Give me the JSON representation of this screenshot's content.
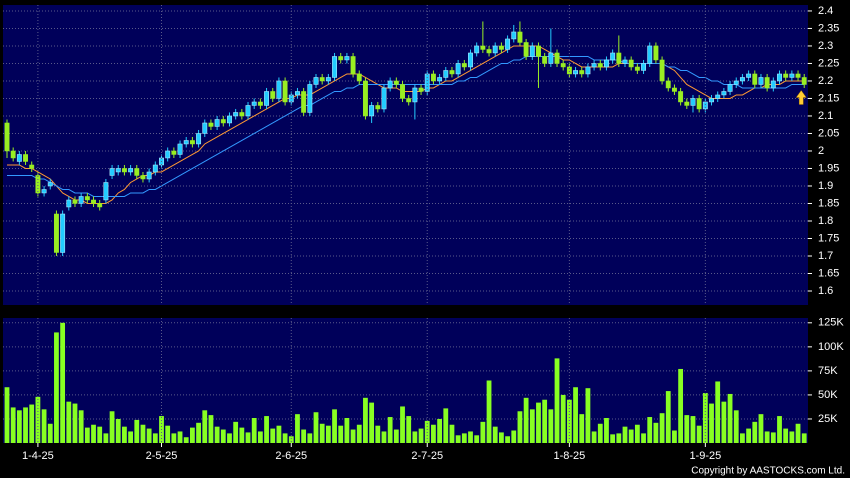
{
  "chart_data": [
    {
      "type": "candlestick",
      "up_color": "#22ccff",
      "down_color": "#99ee22",
      "ylim": [
        1.56,
        2.417
      ],
      "yticks": [
        2.4,
        2.35,
        2.3,
        2.25,
        2.2,
        2.15,
        2.1,
        2.05,
        2,
        1.95,
        1.9,
        1.85,
        1.8,
        1.75,
        1.7,
        1.65,
        1.6
      ],
      "grid": true,
      "open": [
        2.08,
        2.0,
        1.97,
        1.99,
        1.96,
        1.93,
        1.88,
        1.9,
        1.82,
        1.71,
        1.84,
        1.86,
        1.85,
        1.87,
        1.86,
        1.85,
        1.86,
        1.93,
        1.94,
        1.95,
        1.94,
        1.95,
        1.93,
        1.92,
        1.94,
        1.96,
        1.98,
        2.0,
        1.99,
        2.02,
        2.03,
        2.02,
        2.05,
        2.08,
        2.07,
        2.09,
        2.08,
        2.1,
        2.11,
        2.1,
        2.13,
        2.14,
        2.13,
        2.17,
        2.15,
        2.2,
        2.14,
        2.16,
        2.17,
        2.11,
        2.19,
        2.21,
        2.2,
        2.21,
        2.27,
        2.26,
        2.27,
        2.22,
        2.2,
        2.1,
        2.13,
        2.12,
        2.18,
        2.2,
        2.19,
        2.15,
        2.14,
        2.18,
        2.17,
        2.22,
        2.2,
        2.21,
        2.23,
        2.22,
        2.25,
        2.24,
        2.28,
        2.3,
        2.29,
        2.28,
        2.3,
        2.29,
        2.32,
        2.34,
        2.31,
        2.27,
        2.3,
        2.27,
        2.25,
        2.28,
        2.25,
        2.24,
        2.22,
        2.23,
        2.22,
        2.24,
        2.25,
        2.24,
        2.26,
        2.28,
        2.25,
        2.26,
        2.24,
        2.23,
        2.25,
        2.3,
        2.26,
        2.2,
        2.18,
        2.17,
        2.14,
        2.13,
        2.15,
        2.12,
        2.14,
        2.15,
        2.16,
        2.17,
        2.19,
        2.2,
        2.21,
        2.22,
        2.19,
        2.21,
        2.18,
        2.2,
        2.22,
        2.21,
        2.22,
        2.21
      ],
      "high": [
        2.09,
        2.01,
        2.0,
        2.0,
        1.97,
        1.94,
        1.9,
        1.92,
        1.83,
        1.83,
        1.87,
        1.87,
        1.88,
        1.88,
        1.87,
        1.86,
        1.92,
        1.96,
        1.96,
        1.96,
        1.96,
        1.96,
        1.94,
        1.95,
        1.97,
        1.99,
        2.01,
        2.01,
        2.03,
        2.04,
        2.04,
        2.06,
        2.09,
        2.09,
        2.1,
        2.1,
        2.11,
        2.12,
        2.12,
        2.14,
        2.15,
        2.15,
        2.18,
        2.18,
        2.21,
        2.21,
        2.17,
        2.18,
        2.18,
        2.2,
        2.22,
        2.22,
        2.22,
        2.28,
        2.28,
        2.28,
        2.28,
        2.23,
        2.21,
        2.14,
        2.14,
        2.19,
        2.21,
        2.21,
        2.2,
        2.16,
        2.19,
        2.19,
        2.23,
        2.23,
        2.22,
        2.24,
        2.24,
        2.26,
        2.26,
        2.29,
        2.31,
        2.37,
        2.3,
        2.31,
        2.31,
        2.33,
        2.36,
        2.37,
        2.32,
        2.31,
        2.31,
        2.28,
        2.35,
        2.29,
        2.26,
        2.25,
        2.24,
        2.24,
        2.25,
        2.26,
        2.26,
        2.27,
        2.29,
        2.33,
        2.27,
        2.27,
        2.25,
        2.26,
        2.31,
        2.31,
        2.27,
        2.21,
        2.19,
        2.18,
        2.15,
        2.16,
        2.16,
        2.15,
        2.16,
        2.17,
        2.18,
        2.2,
        2.21,
        2.22,
        2.23,
        2.23,
        2.22,
        2.22,
        2.21,
        2.23,
        2.23,
        2.23,
        2.23,
        2.22
      ],
      "low": [
        1.98,
        1.97,
        1.96,
        1.96,
        1.94,
        1.87,
        1.87,
        1.89,
        1.7,
        1.7,
        1.83,
        1.84,
        1.84,
        1.85,
        1.84,
        1.83,
        1.85,
        1.92,
        1.93,
        1.93,
        1.93,
        1.92,
        1.91,
        1.91,
        1.93,
        1.95,
        1.97,
        1.98,
        1.98,
        2.01,
        2.01,
        2.01,
        2.04,
        2.06,
        2.06,
        2.07,
        2.07,
        2.09,
        2.09,
        2.09,
        2.12,
        2.12,
        2.12,
        2.14,
        2.14,
        2.13,
        2.13,
        2.15,
        2.1,
        2.1,
        2.18,
        2.19,
        2.19,
        2.2,
        2.25,
        2.25,
        2.21,
        2.19,
        2.09,
        2.08,
        2.11,
        2.11,
        2.17,
        2.18,
        2.14,
        2.13,
        2.09,
        2.16,
        2.16,
        2.19,
        2.19,
        2.2,
        2.21,
        2.21,
        2.23,
        2.23,
        2.27,
        2.28,
        2.27,
        2.27,
        2.28,
        2.28,
        2.31,
        2.3,
        2.26,
        2.26,
        2.18,
        2.24,
        2.24,
        2.24,
        2.23,
        2.21,
        2.21,
        2.21,
        2.21,
        2.23,
        2.23,
        2.23,
        2.25,
        2.24,
        2.24,
        2.23,
        2.22,
        2.22,
        2.24,
        2.25,
        2.19,
        2.17,
        2.16,
        2.13,
        2.12,
        2.11,
        2.11,
        2.11,
        2.13,
        2.14,
        2.15,
        2.16,
        2.18,
        2.19,
        2.2,
        2.18,
        2.18,
        2.17,
        2.17,
        2.19,
        2.2,
        2.2,
        2.2,
        2.18
      ],
      "close": [
        2.0,
        1.98,
        1.99,
        1.97,
        1.95,
        1.88,
        1.89,
        1.91,
        1.71,
        1.82,
        1.86,
        1.85,
        1.87,
        1.86,
        1.85,
        1.84,
        1.91,
        1.95,
        1.95,
        1.94,
        1.95,
        1.93,
        1.92,
        1.94,
        1.96,
        1.98,
        2.0,
        1.99,
        2.02,
        2.03,
        2.02,
        2.05,
        2.08,
        2.07,
        2.09,
        2.08,
        2.1,
        2.11,
        2.1,
        2.13,
        2.14,
        2.13,
        2.17,
        2.15,
        2.2,
        2.14,
        2.16,
        2.17,
        2.11,
        2.19,
        2.21,
        2.2,
        2.21,
        2.27,
        2.26,
        2.27,
        2.22,
        2.2,
        2.1,
        2.13,
        2.12,
        2.18,
        2.2,
        2.19,
        2.15,
        2.14,
        2.18,
        2.17,
        2.22,
        2.2,
        2.21,
        2.23,
        2.22,
        2.25,
        2.24,
        2.28,
        2.3,
        2.29,
        2.28,
        2.3,
        2.29,
        2.32,
        2.34,
        2.31,
        2.27,
        2.3,
        2.27,
        2.25,
        2.28,
        2.25,
        2.24,
        2.22,
        2.23,
        2.22,
        2.24,
        2.25,
        2.24,
        2.26,
        2.28,
        2.25,
        2.26,
        2.24,
        2.23,
        2.25,
        2.3,
        2.26,
        2.2,
        2.18,
        2.17,
        2.14,
        2.13,
        2.15,
        2.12,
        2.14,
        2.15,
        2.16,
        2.17,
        2.19,
        2.2,
        2.21,
        2.22,
        2.19,
        2.21,
        2.18,
        2.2,
        2.22,
        2.21,
        2.22,
        2.21,
        2.19
      ],
      "series": [
        {
          "color": "#ff9933",
          "values": [
            1.96,
            1.96,
            1.96,
            1.95,
            1.95,
            1.94,
            1.93,
            1.92,
            1.9,
            1.88,
            1.87,
            1.86,
            1.86,
            1.85,
            1.85,
            1.85,
            1.85,
            1.86,
            1.88,
            1.89,
            1.91,
            1.92,
            1.93,
            1.93,
            1.94,
            1.94,
            1.95,
            1.96,
            1.97,
            1.98,
            1.99,
            2.0,
            2.02,
            2.03,
            2.04,
            2.05,
            2.06,
            2.07,
            2.08,
            2.09,
            2.1,
            2.11,
            2.12,
            2.13,
            2.14,
            2.15,
            2.15,
            2.16,
            2.16,
            2.16,
            2.17,
            2.18,
            2.19,
            2.2,
            2.21,
            2.22,
            2.22,
            2.22,
            2.21,
            2.2,
            2.19,
            2.18,
            2.18,
            2.18,
            2.17,
            2.17,
            2.17,
            2.17,
            2.18,
            2.18,
            2.19,
            2.2,
            2.2,
            2.21,
            2.22,
            2.23,
            2.24,
            2.25,
            2.26,
            2.27,
            2.28,
            2.29,
            2.3,
            2.3,
            2.3,
            2.3,
            2.3,
            2.29,
            2.28,
            2.27,
            2.26,
            2.26,
            2.25,
            2.24,
            2.24,
            2.24,
            2.24,
            2.24,
            2.24,
            2.25,
            2.25,
            2.25,
            2.25,
            2.25,
            2.25,
            2.25,
            2.25,
            2.24,
            2.23,
            2.21,
            2.19,
            2.18,
            2.17,
            2.16,
            2.15,
            2.15,
            2.15,
            2.15,
            2.16,
            2.16,
            2.17,
            2.18,
            2.18,
            2.19,
            2.19,
            2.19,
            2.2,
            2.2,
            2.2,
            2.2
          ]
        },
        {
          "color": "#3399ff",
          "values": [
            1.93,
            1.93,
            1.93,
            1.93,
            1.93,
            1.92,
            1.92,
            1.91,
            1.9,
            1.89,
            1.89,
            1.88,
            1.88,
            1.88,
            1.87,
            1.87,
            1.87,
            1.87,
            1.87,
            1.87,
            1.88,
            1.88,
            1.88,
            1.89,
            1.89,
            1.9,
            1.91,
            1.92,
            1.93,
            1.94,
            1.95,
            1.96,
            1.97,
            1.98,
            1.99,
            2.0,
            2.01,
            2.02,
            2.03,
            2.04,
            2.05,
            2.06,
            2.07,
            2.08,
            2.09,
            2.1,
            2.11,
            2.12,
            2.13,
            2.13,
            2.14,
            2.15,
            2.16,
            2.17,
            2.17,
            2.18,
            2.18,
            2.19,
            2.19,
            2.19,
            2.19,
            2.19,
            2.19,
            2.19,
            2.19,
            2.19,
            2.19,
            2.19,
            2.19,
            2.19,
            2.19,
            2.19,
            2.19,
            2.2,
            2.2,
            2.21,
            2.21,
            2.22,
            2.23,
            2.24,
            2.25,
            2.25,
            2.26,
            2.26,
            2.27,
            2.27,
            2.27,
            2.27,
            2.27,
            2.27,
            2.27,
            2.27,
            2.27,
            2.27,
            2.27,
            2.26,
            2.26,
            2.26,
            2.26,
            2.26,
            2.25,
            2.25,
            2.25,
            2.25,
            2.25,
            2.25,
            2.25,
            2.24,
            2.24,
            2.23,
            2.23,
            2.22,
            2.21,
            2.21,
            2.2,
            2.2,
            2.19,
            2.19,
            2.19,
            2.18,
            2.18,
            2.18,
            2.18,
            2.18,
            2.18,
            2.18,
            2.18,
            2.19,
            2.19,
            2.19
          ]
        }
      ]
    },
    {
      "type": "bar",
      "color": "#88ff22",
      "ylim": [
        0,
        130000
      ],
      "yticks": [
        {
          "value": 125000,
          "label": "125K"
        },
        {
          "value": 100000,
          "label": "100K"
        },
        {
          "value": 75000,
          "label": "75K"
        },
        {
          "value": 50000,
          "label": "50K"
        },
        {
          "value": 25000,
          "label": "25K"
        }
      ],
      "grid": true,
      "xticks": [
        {
          "value": 5,
          "label": "1-4-25"
        },
        {
          "value": 25,
          "label": "2-5-25"
        },
        {
          "value": 46,
          "label": "2-6-25"
        },
        {
          "value": 68,
          "label": "2-7-25"
        },
        {
          "value": 91,
          "label": "1-8-25"
        },
        {
          "value": 113,
          "label": "1-9-25"
        }
      ],
      "values": [
        58000,
        37000,
        34000,
        37000,
        40000,
        48000,
        35000,
        20000,
        115000,
        125000,
        43000,
        41000,
        34000,
        16000,
        19000,
        17000,
        10000,
        33000,
        25000,
        17000,
        12000,
        24000,
        19000,
        15000,
        10000,
        28000,
        18000,
        10000,
        12000,
        6000,
        16000,
        21000,
        34000,
        29000,
        17000,
        14000,
        10000,
        22000,
        16000,
        11000,
        26000,
        12000,
        28000,
        15000,
        18000,
        10000,
        7000,
        30000,
        14000,
        10000,
        32000,
        20000,
        18000,
        35000,
        18000,
        26000,
        14000,
        19000,
        47000,
        42000,
        18000,
        12000,
        27000,
        14000,
        38000,
        28000,
        12000,
        15000,
        23000,
        19000,
        25000,
        36000,
        19000,
        8000,
        10000,
        12000,
        8000,
        22000,
        65000,
        17000,
        11000,
        7000,
        13000,
        33000,
        47000,
        35000,
        42000,
        45000,
        35000,
        88000,
        50000,
        45000,
        58000,
        30000,
        57000,
        12000,
        20000,
        26000,
        9000,
        10000,
        17000,
        14000,
        19000,
        10000,
        27000,
        21000,
        31000,
        54000,
        13000,
        77000,
        29000,
        28000,
        18000,
        52000,
        41000,
        64000,
        43000,
        51000,
        34000,
        10000,
        15000,
        22000,
        30000,
        12000,
        11000,
        28000,
        15000,
        12000,
        20000,
        10000
      ],
      "copyright": "Copyright by AASTOCKS.com Ltd."
    }
  ]
}
